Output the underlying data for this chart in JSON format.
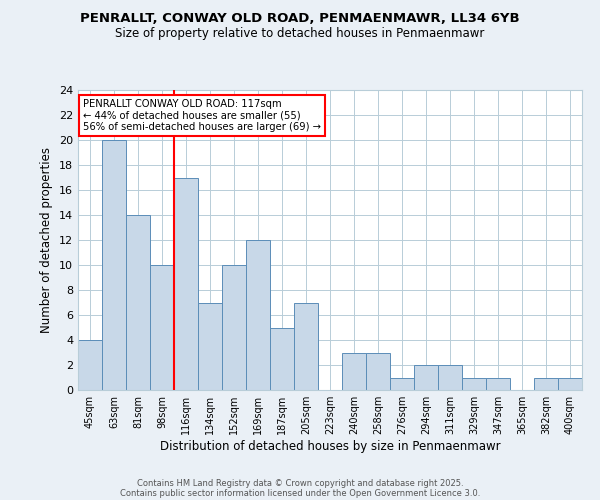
{
  "title_line1": "PENRALLT, CONWAY OLD ROAD, PENMAENMAWR, LL34 6YB",
  "title_line2": "Size of property relative to detached houses in Penmaenmawr",
  "xlabel": "Distribution of detached houses by size in Penmaenmawr",
  "ylabel": "Number of detached properties",
  "categories": [
    "45sqm",
    "63sqm",
    "81sqm",
    "98sqm",
    "116sqm",
    "134sqm",
    "152sqm",
    "169sqm",
    "187sqm",
    "205sqm",
    "223sqm",
    "240sqm",
    "258sqm",
    "276sqm",
    "294sqm",
    "311sqm",
    "329sqm",
    "347sqm",
    "365sqm",
    "382sqm",
    "400sqm"
  ],
  "values": [
    4,
    20,
    14,
    10,
    17,
    7,
    10,
    12,
    5,
    7,
    0,
    3,
    3,
    1,
    2,
    2,
    1,
    1,
    0,
    1,
    1
  ],
  "bar_color": "#c8d8e8",
  "bar_edgecolor": "#5b8db8",
  "redline_index": 4,
  "annotation_text": "PENRALLT CONWAY OLD ROAD: 117sqm\n← 44% of detached houses are smaller (55)\n56% of semi-detached houses are larger (69) →",
  "annotation_box_color": "white",
  "annotation_box_edgecolor": "red",
  "ylim": [
    0,
    24
  ],
  "yticks": [
    0,
    2,
    4,
    6,
    8,
    10,
    12,
    14,
    16,
    18,
    20,
    22,
    24
  ],
  "footer_line1": "Contains HM Land Registry data © Crown copyright and database right 2025.",
  "footer_line2": "Contains public sector information licensed under the Open Government Licence 3.0.",
  "background_color": "#eaf0f6",
  "plot_background": "white",
  "grid_color": "#b8cdd8"
}
